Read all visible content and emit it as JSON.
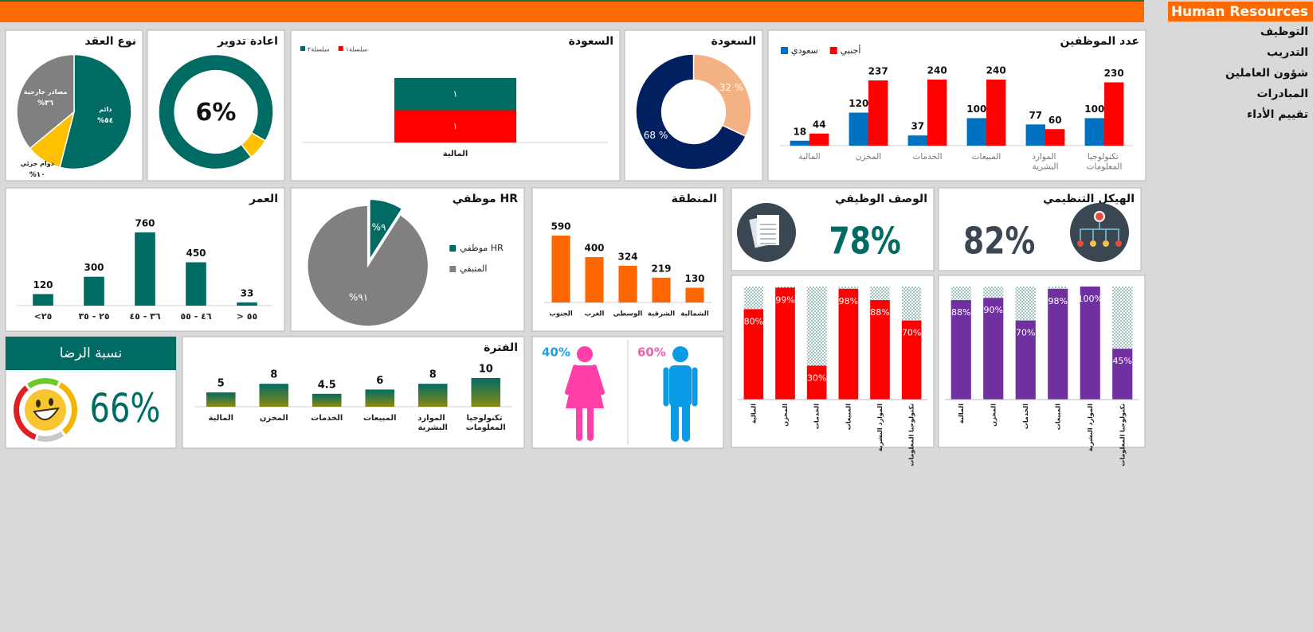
{
  "header": {
    "title": "Human Resources"
  },
  "nav": [
    "التوظيف",
    "التدريب",
    "شؤون العاملين",
    "المبادرات",
    "تقييم الأداء"
  ],
  "chart_data": [
    {
      "type": "bar",
      "title": "عدد الموظفين",
      "categories": [
        "المالية",
        "المخزن",
        "الخدمات",
        "المبيعات",
        "الموارد البشرية",
        "تكنولوجيا المعلومات"
      ],
      "series": [
        {
          "name": "سعودي",
          "color": "#0070c0",
          "values": [
            18,
            120,
            37,
            100,
            77,
            100
          ]
        },
        {
          "name": "أجنبي",
          "color": "#ff0000",
          "values": [
            44,
            237,
            240,
            240,
            60,
            230
          ]
        }
      ]
    },
    {
      "type": "donut",
      "title": "السعودة",
      "values": [
        32,
        68
      ],
      "value_labels": [
        "32 %",
        "68 %"
      ],
      "colors": [
        "#f4b183",
        "#002060"
      ]
    },
    {
      "type": "stacked-bar",
      "title": "السعودة",
      "categories": [
        "المالية"
      ],
      "series": [
        {
          "name": "سلسلة١",
          "color": "#ff0000",
          "values": [
            1
          ],
          "value_labels": [
            "١"
          ]
        },
        {
          "name": "سلسلة٢",
          "color": "#006b63",
          "values": [
            1
          ],
          "value_labels": [
            "١"
          ]
        }
      ]
    },
    {
      "type": "donut",
      "title": "اعادة تدوير",
      "values": [
        94,
        6
      ],
      "center_label": "6%",
      "colors": [
        "#006b63",
        "#ffc000"
      ]
    },
    {
      "type": "pie",
      "title": "نوع العقد",
      "categories": [
        "دائم",
        "دوام جزئي",
        "مصادر خارجية"
      ],
      "values": [
        54,
        10,
        36
      ],
      "value_labels": [
        "%٥٤",
        "%١٠",
        "%٣٦"
      ],
      "colors": [
        "#006b63",
        "#ffc000",
        "#808080"
      ]
    },
    {
      "type": "bar",
      "title": "العمر",
      "categories": [
        "<٢٥",
        "٢٥ - ٣٥",
        "٣٦ - ٤٥",
        "٤٦ - ٥٥",
        "> ٥٥"
      ],
      "values": [
        120,
        300,
        760,
        450,
        33
      ],
      "color": "#006b63"
    },
    {
      "type": "pie",
      "title": "موظفي HR",
      "categories": [
        "موظفي HR",
        "المتبقي"
      ],
      "values": [
        9,
        91
      ],
      "value_labels": [
        "%٩",
        "%٩١"
      ],
      "colors": [
        "#006b63",
        "#808080"
      ],
      "legend": "right"
    },
    {
      "type": "bar",
      "title": "المنطقة",
      "categories": [
        "الجنوب",
        "الغرب",
        "الوسطى",
        "الشرقية",
        "الشمالية"
      ],
      "values": [
        590,
        400,
        324,
        219,
        130
      ],
      "color": "#ff6600"
    },
    {
      "type": "kpi",
      "title": "الوصف الوظيفي",
      "value": 78,
      "value_label": "78%",
      "color": "#006b63"
    },
    {
      "type": "kpi",
      "title": "الهيكل التنظيمي",
      "value": 82,
      "value_label": "82%",
      "color": "#3b4653"
    },
    {
      "type": "progress",
      "categories": [
        "المالية",
        "المخزن",
        "الخدمات",
        "المبيعات",
        "الموارد البشرية",
        "تكنولوجيا المعلومات"
      ],
      "values": [
        80,
        99,
        30,
        98,
        88,
        70
      ],
      "value_labels": [
        "80%",
        "99%",
        "30%",
        "98%",
        "88%",
        "70%"
      ],
      "color": "#ff0000",
      "ylim": [
        0,
        100
      ]
    },
    {
      "type": "progress",
      "categories": [
        "المالية",
        "المخزن",
        "الخدمات",
        "المبيعات",
        "الموارد البشرية",
        "تكنولوجيا المعلومات"
      ],
      "values": [
        88,
        90,
        70,
        98,
        100,
        45
      ],
      "value_labels": [
        "88%",
        "90%",
        "70%",
        "98%",
        "100%",
        "45%"
      ],
      "color": "#7030a0",
      "ylim": [
        0,
        100
      ]
    },
    {
      "type": "gauge-kpi",
      "title": "نسبة الرضا",
      "value": 66,
      "value_label": "66%",
      "color": "#006b63"
    },
    {
      "type": "bar",
      "title": "الفترة",
      "categories": [
        "المالية",
        "المخزن",
        "الخدمات",
        "المبيعات",
        "الموارد البشرية",
        "تكنولوجيا المعلومات"
      ],
      "values": [
        5,
        8,
        4.5,
        6,
        8,
        10
      ],
      "color": "#006b63",
      "gradient_to": "#8a8a10"
    },
    {
      "type": "pictogram",
      "series": [
        {
          "value": 40,
          "value_label": "40%",
          "color": "#ff3fa8",
          "label_color": "#1aa3e0"
        },
        {
          "value": 60,
          "value_label": "60%",
          "color": "#0a9be6",
          "label_color": "#f060b0"
        }
      ]
    }
  ]
}
